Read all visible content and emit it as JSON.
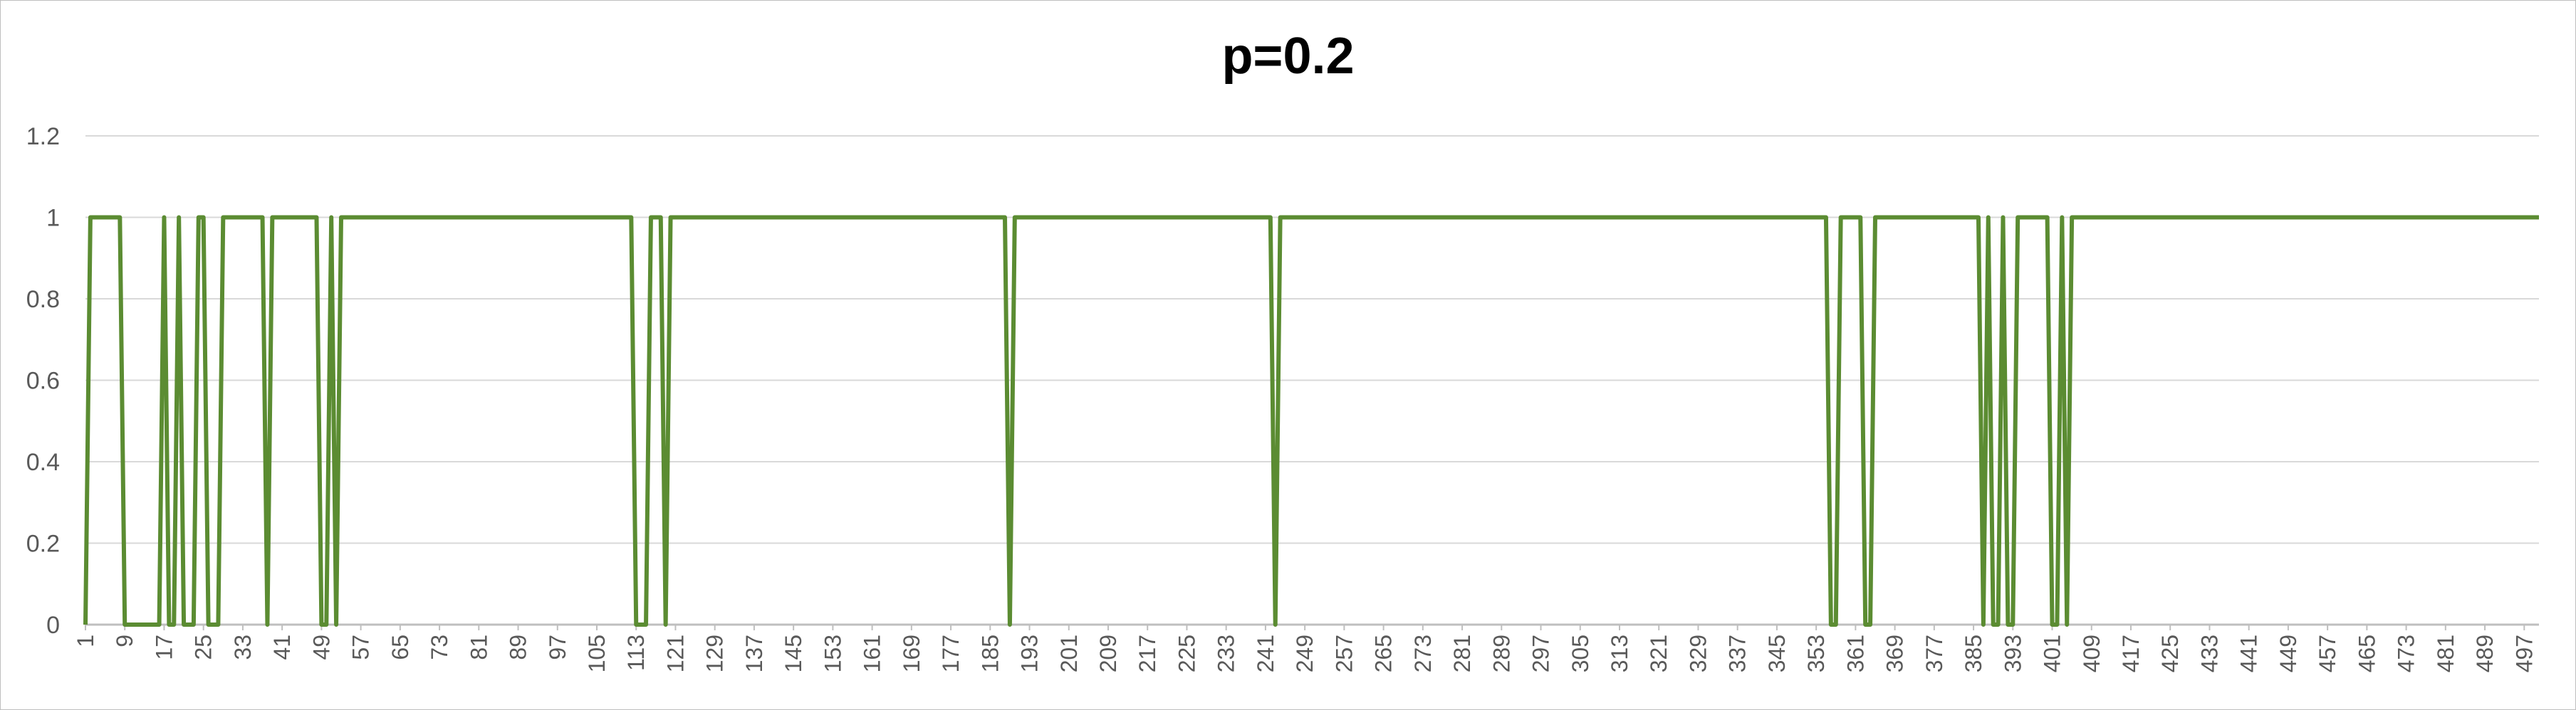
{
  "chart_data": {
    "type": "line",
    "title": "p=0.2",
    "xlabel": "",
    "ylabel": "",
    "ylim": [
      0,
      1.2
    ],
    "yticks": [
      "0",
      "0.2",
      "0.4",
      "0.6",
      "0.8",
      "1",
      "1.2"
    ],
    "xlim": [
      1,
      500
    ],
    "xtick_labels": [
      "1",
      "9",
      "17",
      "25",
      "33",
      "41",
      "49",
      "57",
      "65",
      "73",
      "81",
      "89",
      "97",
      "105",
      "113",
      "121",
      "129",
      "137",
      "145",
      "153",
      "161",
      "169",
      "177",
      "185",
      "193",
      "201",
      "209",
      "217",
      "225",
      "233",
      "241",
      "249",
      "257",
      "265",
      "273",
      "281",
      "289",
      "297",
      "305",
      "313",
      "321",
      "329",
      "337",
      "345",
      "353",
      "361",
      "369",
      "377",
      "385",
      "393",
      "401",
      "409",
      "417",
      "425",
      "433",
      "441",
      "449",
      "457",
      "465",
      "473",
      "481",
      "489",
      "497"
    ],
    "grid": true,
    "legend": "none",
    "series": [
      {
        "color": "#5b8c32",
        "x_start": 1,
        "x_end": 500,
        "zero_intervals": [
          [
            1,
            1
          ],
          [
            9,
            16
          ],
          [
            18,
            19
          ],
          [
            21,
            23
          ],
          [
            26,
            28
          ],
          [
            38,
            38
          ],
          [
            49,
            50
          ],
          [
            52,
            52
          ],
          [
            113,
            115
          ],
          [
            119,
            119
          ],
          [
            189,
            189
          ],
          [
            243,
            243
          ],
          [
            356,
            357
          ],
          [
            363,
            364
          ],
          [
            387,
            387
          ],
          [
            389,
            390
          ],
          [
            392,
            393
          ],
          [
            401,
            402
          ],
          [
            404,
            404
          ]
        ],
        "default_value": 1
      }
    ]
  }
}
